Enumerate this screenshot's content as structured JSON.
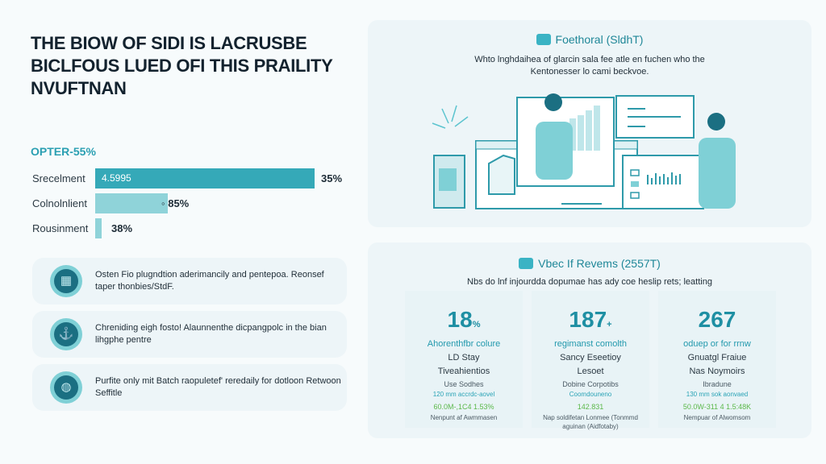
{
  "headline": {
    "line1": "THE BIOW OF SIDI IS LACRUSBE",
    "line2": "BICLFOUS LUED OFI THIS PRAILITY",
    "line3": "NVUFTNAN"
  },
  "bar_section": {
    "title": "OPTER-55%",
    "bars": [
      {
        "label": "Srecelment",
        "inner_label": "4.5995",
        "value_label": "35%",
        "fill_fraction": 1.0,
        "color": "#35a9b8"
      },
      {
        "label": "Colnolnlient",
        "inner_label": "",
        "value_label": "◦ 85%",
        "fill_fraction": 0.33,
        "color": "#8fd3d9"
      },
      {
        "label": "Rousinment",
        "inner_label": "",
        "value_label": "38%",
        "fill_fraction": 0.03,
        "color": "#8fd3d9"
      }
    ]
  },
  "cards": [
    {
      "icon": "chip-icon",
      "glyph": "▦",
      "text": "Osten Fio plugndtion aderimancily and pentepoa. Reonsef taper thonbies/StdF."
    },
    {
      "icon": "anchor-icon",
      "glyph": "⚓",
      "text": "Chreniding eigh fosto! Alaunnenthe dicpangpolc in the bian lihgphe pentre"
    },
    {
      "icon": "globe-icon",
      "glyph": "◍",
      "text": "Purfite only mit Batch raopuletef' reredaily for dotloon Retwoon Seffitle"
    }
  ],
  "top_panel": {
    "title": "Foethoral (SldhT)",
    "description_line1": "Whto lnghdaihea of glarcin sala fee atle en fuchen who the",
    "description_line2": "Kentonesser lo cami beckvoe."
  },
  "bottom_panel": {
    "title": "Vbec If Revems (2557T)",
    "description": "Nbs do lnf injourdda dopumae has ady coe heslip rets; leatting",
    "stats": [
      {
        "value": "18",
        "suffix": "%",
        "sub": "Ahorenthfbr colure",
        "line1": "LD Stay",
        "line2": "Tiveahientios",
        "line3": "Use Sodhes",
        "line4": "120 mm accrdc-aovel",
        "green": "60.0M-,1C4 1.53%",
        "foot": "Nenpunt af Awmmasen"
      },
      {
        "value": "187",
        "suffix": "+",
        "sub": "regimanst comolth",
        "line1": "Sancy Eseetioy",
        "line2": "Lesoet",
        "line3": "Dobine Corpotibs",
        "line4": "Coomdouneno",
        "green": "142.831",
        "foot": "Nap soldifetan Lonmee (Tonmmd aguinan (Aidfotaby)"
      },
      {
        "value": "267",
        "suffix": "",
        "sub": "oduep or for rrnw",
        "line1": "Gnuatgl Fraiue",
        "line2": "Nas Noymoirs",
        "line3": "Ibradune",
        "line4": "130 mm sok aonvaed",
        "green": "50.0W-311 4 1.5:48K",
        "foot": "Nempuar of Alwomsom"
      }
    ]
  },
  "colors": {
    "accent": "#2a9fb2",
    "dark_teal": "#1b6f82",
    "light_teal": "#8fd3d9",
    "panel_bg": "#edf5f8",
    "green": "#5bb84a"
  }
}
